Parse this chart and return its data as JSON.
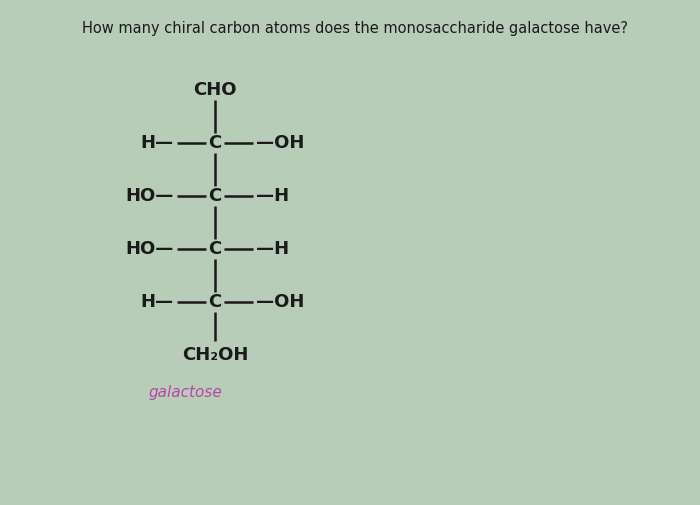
{
  "title": "How many chiral carbon atoms does the monosaccharide galactose have?",
  "title_fontsize": 10.5,
  "title_color": "#1a1a1a",
  "background_color": "#b8cdb8",
  "structure_color": "#1a1a1a",
  "label_color": "#bb44aa",
  "label_text": "galactose",
  "cho_text": "CHO",
  "ch2oh_text": "CH₂OH",
  "rows": [
    {
      "left": "H",
      "right": "OH"
    },
    {
      "left": "HO",
      "right": "H"
    },
    {
      "left": "HO",
      "right": "H"
    },
    {
      "left": "H",
      "right": "OH"
    }
  ],
  "fig_width": 7.0,
  "fig_height": 5.05,
  "dpi": 100
}
